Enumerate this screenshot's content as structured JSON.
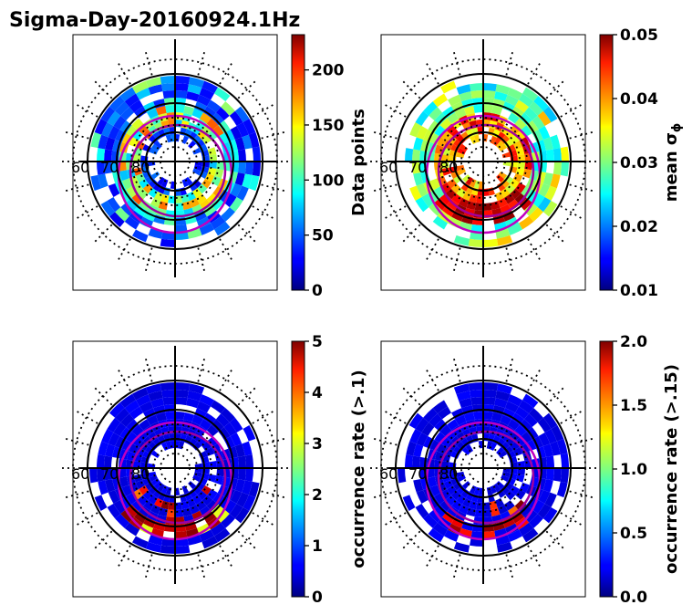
{
  "title": "Sigma-Day-20160924.1Hz",
  "lat_labels": [
    "60",
    "70",
    "80"
  ],
  "panels": [
    {
      "id": "data-points",
      "cb_label": "Data points",
      "ticks": [
        "0",
        "50",
        "100",
        "150",
        "200"
      ],
      "tick_values": [
        0,
        50,
        100,
        150,
        200
      ],
      "vmin": 0,
      "vmax": 232
    },
    {
      "id": "mean-sigma",
      "cb_label_main": "mean σ",
      "cb_label_sub": "ϕ",
      "ticks": [
        "0.01",
        "0.02",
        "0.03",
        "0.04",
        "0.05"
      ],
      "tick_values": [
        0.01,
        0.02,
        0.03,
        0.04,
        0.05
      ],
      "vmin": 0.01,
      "vmax": 0.05
    },
    {
      "id": "occ-rate-01",
      "cb_label": "occurrence rate (>.1)",
      "ticks": [
        "0",
        "1",
        "2",
        "3",
        "4",
        "5"
      ],
      "tick_values": [
        0,
        1,
        2,
        3,
        4,
        5
      ],
      "vmin": 0,
      "vmax": 5
    },
    {
      "id": "occ-rate-015",
      "cb_label": "occurrence rate (>.15)",
      "ticks": [
        "0.0",
        "0.5",
        "1.0",
        "1.5",
        "2.0"
      ],
      "tick_values": [
        0,
        0.5,
        1,
        1.5,
        2
      ],
      "vmin": 0,
      "vmax": 2
    }
  ],
  "chart_data": [
    {
      "type": "heatmap",
      "title": "Sigma-Day-20160924.1Hz",
      "projection": "polar (magnetic latitude / MLT)",
      "colorbar_label": "Data points",
      "colorbar_range": [
        0,
        232
      ],
      "colormap": "jet"
    },
    {
      "type": "heatmap",
      "colorbar_label": "mean σϕ",
      "colorbar_range": [
        0.01,
        0.05
      ],
      "colormap": "jet"
    },
    {
      "type": "heatmap",
      "colorbar_label": "occurrence rate (>.1)",
      "colorbar_range": [
        0,
        5
      ],
      "colormap": "jet"
    },
    {
      "type": "heatmap",
      "colorbar_label": "occurrence rate (>.15)",
      "colorbar_range": [
        0,
        2
      ],
      "colormap": "jet"
    }
  ]
}
